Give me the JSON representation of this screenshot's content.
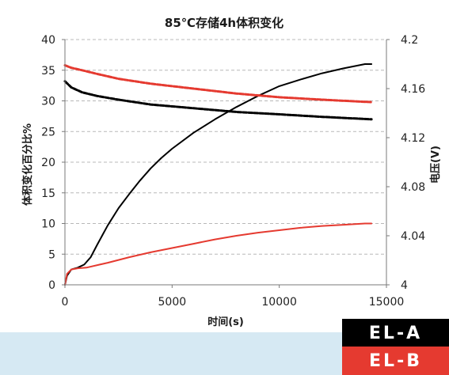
{
  "chart_data": {
    "type": "line",
    "title": "85℃存储4h体积变化",
    "xlabel": "时间(s)",
    "ylabel_left": "体积变化百分比%",
    "ylabel_right": "电压(V)",
    "xlim": [
      0,
      15000
    ],
    "ylim_left": [
      0,
      40
    ],
    "ylim_right": [
      4,
      4.2
    ],
    "x_ticks": [
      "0",
      "5000",
      "10000",
      "15000"
    ],
    "y_left_ticks": [
      "0",
      "5",
      "10",
      "15",
      "20",
      "25",
      "30",
      "35",
      "40"
    ],
    "y_right_ticks": [
      "4",
      "4.04",
      "4.08",
      "4.12",
      "4.16",
      "4.2"
    ],
    "grid": "horizontal dashed",
    "legend_placement": "bottom-right",
    "series": [
      {
        "name": "EL-A",
        "color": "#000000",
        "axis": "left",
        "style": "solid",
        "points": [
          [
            0,
            0
          ],
          [
            100,
            1.5
          ],
          [
            300,
            2.5
          ],
          [
            600,
            2.8
          ],
          [
            900,
            3.3
          ],
          [
            1200,
            4.5
          ],
          [
            1500,
            6.5
          ],
          [
            2000,
            9.7
          ],
          [
            2500,
            12.5
          ],
          [
            3000,
            14.8
          ],
          [
            3500,
            17.0
          ],
          [
            4000,
            19.0
          ],
          [
            4500,
            20.7
          ],
          [
            5000,
            22.2
          ],
          [
            6000,
            24.8
          ],
          [
            7000,
            27.0
          ],
          [
            8000,
            29.0
          ],
          [
            9000,
            30.8
          ],
          [
            10000,
            32.4
          ],
          [
            11000,
            33.5
          ],
          [
            12000,
            34.5
          ],
          [
            13000,
            35.3
          ],
          [
            14000,
            36.0
          ],
          [
            14300,
            36.0
          ]
        ]
      },
      {
        "name": "EL-B",
        "color": "#e53a30",
        "axis": "left",
        "style": "solid",
        "points": [
          [
            0,
            0
          ],
          [
            100,
            1.8
          ],
          [
            300,
            2.5
          ],
          [
            600,
            2.7
          ],
          [
            1000,
            2.8
          ],
          [
            2000,
            3.6
          ],
          [
            3000,
            4.5
          ],
          [
            4000,
            5.3
          ],
          [
            5000,
            6.0
          ],
          [
            6000,
            6.7
          ],
          [
            7000,
            7.4
          ],
          [
            8000,
            8.0
          ],
          [
            9000,
            8.5
          ],
          [
            10000,
            8.9
          ],
          [
            11000,
            9.3
          ],
          [
            12000,
            9.6
          ],
          [
            13000,
            9.8
          ],
          [
            14000,
            10.0
          ],
          [
            14300,
            10.0
          ]
        ]
      },
      {
        "name": "EL-A",
        "color": "#000000",
        "axis": "right",
        "style": "dashed",
        "points": [
          [
            0,
            4.166
          ],
          [
            300,
            4.161
          ],
          [
            800,
            4.157
          ],
          [
            1500,
            4.154
          ],
          [
            2500,
            4.151
          ],
          [
            4000,
            4.147
          ],
          [
            6000,
            4.144
          ],
          [
            8000,
            4.141
          ],
          [
            10000,
            4.139
          ],
          [
            12000,
            4.137
          ],
          [
            14300,
            4.135
          ]
        ]
      },
      {
        "name": "EL-B",
        "color": "#e53a30",
        "axis": "right",
        "style": "dashed",
        "points": [
          [
            0,
            4.179
          ],
          [
            300,
            4.177
          ],
          [
            800,
            4.175
          ],
          [
            1500,
            4.172
          ],
          [
            2500,
            4.168
          ],
          [
            4000,
            4.164
          ],
          [
            6000,
            4.16
          ],
          [
            8000,
            4.156
          ],
          [
            10000,
            4.153
          ],
          [
            12000,
            4.151
          ],
          [
            14300,
            4.149
          ]
        ]
      }
    ]
  },
  "legend": {
    "a_label": "EL-A",
    "b_label": "EL-B"
  }
}
